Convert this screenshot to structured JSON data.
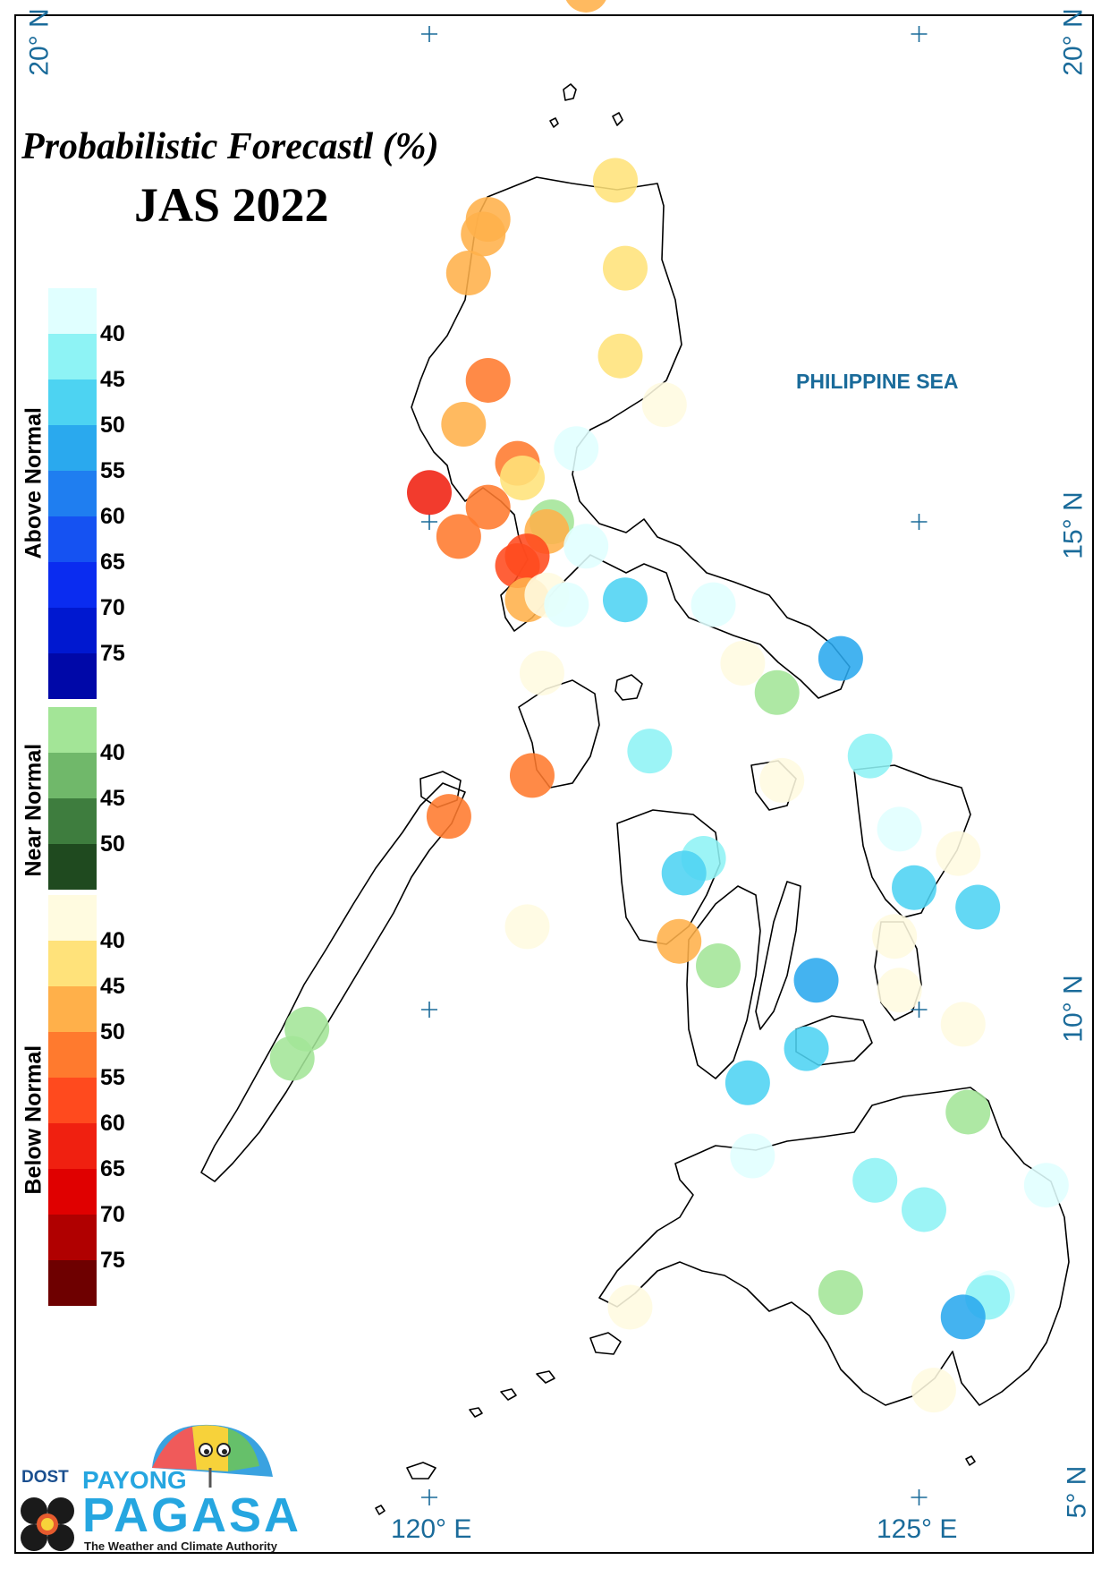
{
  "title": "Probabilistic Forecastl (%)",
  "subtitle": "JAS 2022",
  "sea_label": "PHILIPPINE SEA",
  "lat_labels": {
    "n20": "20° N",
    "n15": "15° N",
    "n10": "10° N",
    "n5": "5° N"
  },
  "lon_labels": {
    "e120": "120° E",
    "e125": "125° E"
  },
  "legend": {
    "above": {
      "title": "Above Normal",
      "values": [
        "40",
        "45",
        "50",
        "55",
        "60",
        "65",
        "70",
        "75"
      ],
      "colors": [
        "#e0ffff",
        "#8ef3f5",
        "#4dd3f2",
        "#2aa9ee",
        "#1f7ef0",
        "#1552f2",
        "#0a2cf0",
        "#0018d0",
        "#0008a8"
      ]
    },
    "near": {
      "title": "Near Normal",
      "values": [
        "40",
        "45",
        "50"
      ],
      "colors": [
        "#a3e597",
        "#70b86a",
        "#3e7d3e",
        "#1f4a1f"
      ]
    },
    "below": {
      "title": "Below Normal",
      "values": [
        "40",
        "45",
        "50",
        "55",
        "60",
        "65",
        "70",
        "75"
      ],
      "colors": [
        "#fffbe0",
        "#ffe27a",
        "#ffb04a",
        "#ff7a2e",
        "#ff4a1e",
        "#f02010",
        "#e00000",
        "#b00000",
        "#6e0000"
      ]
    }
  },
  "logo": {
    "dost": "DOST",
    "payong": "PAYONG",
    "pagasa": "PAGASA",
    "tagline": "The Weather and Climate Authority"
  },
  "stations": [
    {
      "lon": 121.6,
      "lat": 20.45,
      "category": "below",
      "color": "#ffb04a"
    },
    {
      "lon": 121.9,
      "lat": 18.5,
      "category": "below",
      "color": "#ffe27a"
    },
    {
      "lon": 120.6,
      "lat": 18.1,
      "category": "below",
      "color": "#ffb04a"
    },
    {
      "lon": 120.55,
      "lat": 17.95,
      "category": "below",
      "color": "#ffb04a"
    },
    {
      "lon": 120.4,
      "lat": 17.55,
      "category": "below",
      "color": "#ffb04a"
    },
    {
      "lon": 122.0,
      "lat": 17.6,
      "category": "below",
      "color": "#ffe27a"
    },
    {
      "lon": 121.95,
      "lat": 16.7,
      "category": "below",
      "color": "#ffe27a"
    },
    {
      "lon": 120.6,
      "lat": 16.45,
      "category": "below",
      "color": "#ff7a2e"
    },
    {
      "lon": 122.4,
      "lat": 16.2,
      "category": "below",
      "color": "#fffbe0"
    },
    {
      "lon": 120.35,
      "lat": 16.0,
      "category": "below",
      "color": "#ffb04a"
    },
    {
      "lon": 121.5,
      "lat": 15.75,
      "category": "above",
      "color": "#e0ffff"
    },
    {
      "lon": 120.9,
      "lat": 15.6,
      "category": "below",
      "color": "#ff7a2e"
    },
    {
      "lon": 120.95,
      "lat": 15.45,
      "category": "below",
      "color": "#ffe27a"
    },
    {
      "lon": 120.0,
      "lat": 15.3,
      "category": "below",
      "color": "#f02010"
    },
    {
      "lon": 120.6,
      "lat": 15.15,
      "category": "below",
      "color": "#ff7a2e"
    },
    {
      "lon": 121.25,
      "lat": 15.0,
      "category": "near",
      "color": "#a3e597"
    },
    {
      "lon": 121.2,
      "lat": 14.9,
      "category": "below",
      "color": "#ffb04a"
    },
    {
      "lon": 120.3,
      "lat": 14.85,
      "category": "below",
      "color": "#ff7a2e"
    },
    {
      "lon": 121.6,
      "lat": 14.75,
      "category": "above",
      "color": "#e0ffff"
    },
    {
      "lon": 121.0,
      "lat": 14.65,
      "category": "below",
      "color": "#ff4a1e"
    },
    {
      "lon": 120.9,
      "lat": 14.55,
      "category": "below",
      "color": "#ff4a1e"
    },
    {
      "lon": 121.0,
      "lat": 14.2,
      "category": "below",
      "color": "#ffb04a"
    },
    {
      "lon": 121.2,
      "lat": 14.25,
      "category": "below",
      "color": "#fffbe0"
    },
    {
      "lon": 121.4,
      "lat": 14.15,
      "category": "above",
      "color": "#e0ffff"
    },
    {
      "lon": 122.0,
      "lat": 14.2,
      "category": "above",
      "color": "#4dd3f2"
    },
    {
      "lon": 122.9,
      "lat": 14.15,
      "category": "above",
      "color": "#e0ffff"
    },
    {
      "lon": 124.2,
      "lat": 13.6,
      "category": "above",
      "color": "#2aa9ee"
    },
    {
      "lon": 123.2,
      "lat": 13.55,
      "category": "below",
      "color": "#fffbe0"
    },
    {
      "lon": 121.15,
      "lat": 13.45,
      "category": "below",
      "color": "#fffbe0"
    },
    {
      "lon": 123.55,
      "lat": 13.25,
      "category": "near",
      "color": "#a3e597"
    },
    {
      "lon": 122.25,
      "lat": 12.65,
      "category": "above",
      "color": "#8ef3f5"
    },
    {
      "lon": 124.5,
      "lat": 12.6,
      "category": "above",
      "color": "#8ef3f5"
    },
    {
      "lon": 121.05,
      "lat": 12.4,
      "category": "below",
      "color": "#ff7a2e"
    },
    {
      "lon": 123.6,
      "lat": 12.35,
      "category": "below",
      "color": "#fffbe0"
    },
    {
      "lon": 120.2,
      "lat": 11.98,
      "category": "below",
      "color": "#ff7a2e"
    },
    {
      "lon": 124.8,
      "lat": 11.85,
      "category": "above",
      "color": "#e0ffff"
    },
    {
      "lon": 122.8,
      "lat": 11.55,
      "category": "above",
      "color": "#8ef3f5"
    },
    {
      "lon": 122.6,
      "lat": 11.4,
      "category": "above",
      "color": "#4dd3f2"
    },
    {
      "lon": 125.4,
      "lat": 11.6,
      "category": "below",
      "color": "#fffbe0"
    },
    {
      "lon": 124.95,
      "lat": 11.25,
      "category": "above",
      "color": "#4dd3f2"
    },
    {
      "lon": 125.6,
      "lat": 11.05,
      "category": "above",
      "color": "#4dd3f2"
    },
    {
      "lon": 121.0,
      "lat": 10.85,
      "category": "below",
      "color": "#fffbe0"
    },
    {
      "lon": 124.75,
      "lat": 10.75,
      "category": "below",
      "color": "#fffbe0"
    },
    {
      "lon": 122.55,
      "lat": 10.7,
      "category": "below",
      "color": "#ffb04a"
    },
    {
      "lon": 122.95,
      "lat": 10.45,
      "category": "near",
      "color": "#a3e597"
    },
    {
      "lon": 123.95,
      "lat": 10.3,
      "category": "above",
      "color": "#2aa9ee"
    },
    {
      "lon": 124.8,
      "lat": 10.2,
      "category": "below",
      "color": "#fffbe0"
    },
    {
      "lon": 118.75,
      "lat": 9.8,
      "category": "near",
      "color": "#a3e597"
    },
    {
      "lon": 118.6,
      "lat": 9.5,
      "category": "near",
      "color": "#a3e597"
    },
    {
      "lon": 125.45,
      "lat": 9.85,
      "category": "below",
      "color": "#fffbe0"
    },
    {
      "lon": 123.85,
      "lat": 9.6,
      "category": "above",
      "color": "#4dd3f2"
    },
    {
      "lon": 123.25,
      "lat": 9.25,
      "category": "above",
      "color": "#4dd3f2"
    },
    {
      "lon": 125.5,
      "lat": 8.95,
      "category": "near",
      "color": "#a3e597"
    },
    {
      "lon": 123.3,
      "lat": 8.5,
      "category": "above",
      "color": "#e0ffff"
    },
    {
      "lon": 124.55,
      "lat": 8.25,
      "category": "above",
      "color": "#8ef3f5"
    },
    {
      "lon": 126.3,
      "lat": 8.2,
      "category": "above",
      "color": "#e0ffff"
    },
    {
      "lon": 125.05,
      "lat": 7.95,
      "category": "above",
      "color": "#8ef3f5"
    },
    {
      "lon": 125.75,
      "lat": 7.1,
      "category": "above",
      "color": "#e0ffff"
    },
    {
      "lon": 125.7,
      "lat": 7.05,
      "category": "above",
      "color": "#8ef3f5"
    },
    {
      "lon": 124.2,
      "lat": 7.1,
      "category": "near",
      "color": "#a3e597"
    },
    {
      "lon": 125.45,
      "lat": 6.85,
      "category": "above",
      "color": "#2aa9ee"
    },
    {
      "lon": 122.05,
      "lat": 6.95,
      "category": "below",
      "color": "#fffbe0"
    },
    {
      "lon": 125.15,
      "lat": 6.1,
      "category": "below",
      "color": "#fffbe0"
    }
  ]
}
